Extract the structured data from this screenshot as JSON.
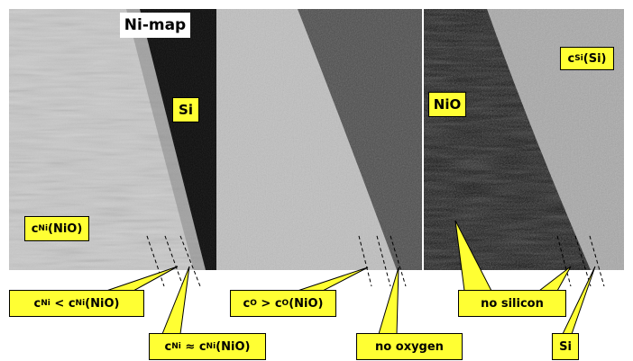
{
  "labels": [
    {
      "parts": [
        {
          "text": "Ni-map"
        }
      ]
    },
    {
      "parts": [
        {
          "text": "Si"
        }
      ]
    },
    {
      "parts": [
        {
          "text": "c"
        },
        {
          "text": "Ni",
          "sub": true
        },
        {
          "text": "(NiO)"
        }
      ]
    },
    {
      "parts": [
        {
          "text": "NiO"
        }
      ]
    },
    {
      "parts": [
        {
          "text": "c"
        },
        {
          "text": "Si",
          "sub": true
        },
        {
          "text": "(Si)"
        }
      ]
    },
    {
      "parts": [
        {
          "text": "c"
        },
        {
          "text": "Ni",
          "sub": true
        },
        {
          "text": " < c"
        },
        {
          "text": "Ni",
          "sub": true
        },
        {
          "text": "(NiO)"
        }
      ]
    },
    {
      "parts": [
        {
          "text": "c"
        },
        {
          "text": "Ni",
          "sub": true
        },
        {
          "text": " ≈ c"
        },
        {
          "text": "Ni",
          "sub": true
        },
        {
          "text": "(NiO)"
        }
      ]
    },
    {
      "parts": [
        {
          "text": "c"
        },
        {
          "text": "O",
          "sub": true
        },
        {
          "text": " > c"
        },
        {
          "text": "O",
          "sub": true
        },
        {
          "text": "(NiO)"
        }
      ]
    },
    {
      "parts": [
        {
          "text": "no oxygen"
        }
      ]
    },
    {
      "parts": [
        {
          "text": "no silicon"
        }
      ]
    },
    {
      "parts": [
        {
          "text": "Si"
        }
      ]
    }
  ]
}
